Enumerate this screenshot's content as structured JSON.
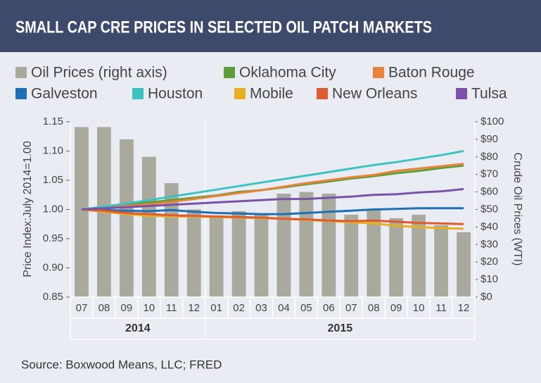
{
  "chart_data": {
    "type": "bar-line",
    "title": "SMALL CAP CRE PRICES IN SELECTED OIL PATCH MARKETS",
    "source": "Source: Boxwood Means, LLC; FRED",
    "ylabel": "Price Index:July 2014=1.00",
    "y2label": "Crude Oil Prices (WTI)",
    "categories": [
      "07",
      "08",
      "09",
      "10",
      "11",
      "12",
      "01",
      "02",
      "03",
      "04",
      "05",
      "06",
      "07",
      "08",
      "09",
      "10",
      "11",
      "12"
    ],
    "years": [
      "2014",
      "2015"
    ],
    "ylim": [
      0.85,
      1.15
    ],
    "yticks": [
      {
        "value": 0.85,
        "label": "0.85"
      },
      {
        "value": 0.9,
        "label": "0.90"
      },
      {
        "value": 0.95,
        "label": "0.95"
      },
      {
        "value": 1.0,
        "label": "1.00"
      },
      {
        "value": 1.05,
        "label": "1.05"
      },
      {
        "value": 1.1,
        "label": "1.10"
      },
      {
        "value": 1.15,
        "label": "1.15"
      }
    ],
    "y2lim": [
      0,
      100
    ],
    "y2ticks": [
      {
        "value": 0,
        "label": "$0"
      },
      {
        "value": 10,
        "label": "$10"
      },
      {
        "value": 20,
        "label": "$20"
      },
      {
        "value": 30,
        "label": "$30"
      },
      {
        "value": 40,
        "label": "$40"
      },
      {
        "value": 50,
        "label": "$50"
      },
      {
        "value": 60,
        "label": "$60"
      },
      {
        "value": 70,
        "label": "$70"
      },
      {
        "value": 80,
        "label": "$80"
      },
      {
        "value": 90,
        "label": "$90"
      },
      {
        "value": 100,
        "label": "$100"
      }
    ],
    "series": [
      {
        "name": "Oil Prices (right axis)",
        "type": "bar",
        "axis": "y2",
        "color": "#a9a99d",
        "values": [
          97,
          97,
          90,
          80,
          65,
          50,
          46,
          49,
          47,
          59,
          60,
          59,
          47,
          50,
          45,
          47,
          41,
          37
        ]
      },
      {
        "name": "Oklahoma City",
        "type": "line",
        "color": "#5e9e3a",
        "values": [
          1.0,
          1.004,
          1.008,
          1.012,
          1.016,
          1.02,
          1.024,
          1.03,
          1.033,
          1.038,
          1.043,
          1.048,
          1.053,
          1.057,
          1.062,
          1.066,
          1.071,
          1.075
        ]
      },
      {
        "name": "Baton Rouge",
        "type": "line",
        "color": "#e8833a",
        "values": [
          1.0,
          1.003,
          1.006,
          1.009,
          1.013,
          1.018,
          1.023,
          1.028,
          1.033,
          1.039,
          1.045,
          1.05,
          1.055,
          1.059,
          1.066,
          1.07,
          1.074,
          1.078
        ]
      },
      {
        "name": "Galveston",
        "type": "line",
        "color": "#1f6fb5",
        "values": [
          1.0,
          0.999,
          0.998,
          0.997,
          0.999,
          0.996,
          0.994,
          0.993,
          0.992,
          0.992,
          0.994,
          0.996,
          0.998,
          1.0,
          1.001,
          1.002,
          1.002,
          1.002
        ]
      },
      {
        "name": "Houston",
        "type": "line",
        "color": "#3ec1c1",
        "values": [
          1.0,
          1.005,
          1.01,
          1.016,
          1.022,
          1.028,
          1.034,
          1.04,
          1.046,
          1.052,
          1.058,
          1.064,
          1.07,
          1.076,
          1.081,
          1.087,
          1.093,
          1.1
        ]
      },
      {
        "name": "Mobile",
        "type": "line",
        "color": "#e8b020",
        "values": [
          1.0,
          0.996,
          0.992,
          0.989,
          0.988,
          0.988,
          0.987,
          0.986,
          0.985,
          0.984,
          0.982,
          0.98,
          0.978,
          0.976,
          0.972,
          0.97,
          0.968,
          0.967
        ]
      },
      {
        "name": "New Orleans",
        "type": "line",
        "color": "#e05a30",
        "values": [
          1.0,
          0.998,
          0.994,
          0.992,
          0.99,
          0.989,
          0.988,
          0.987,
          0.986,
          0.984,
          0.983,
          0.981,
          0.98,
          0.981,
          0.979,
          0.977,
          0.976,
          0.975
        ]
      },
      {
        "name": "Tulsa",
        "type": "line",
        "color": "#7a52a8",
        "values": [
          1.0,
          1.002,
          1.004,
          1.006,
          1.008,
          1.01,
          1.012,
          1.014,
          1.016,
          1.018,
          1.018,
          1.02,
          1.022,
          1.025,
          1.026,
          1.029,
          1.031,
          1.035
        ]
      }
    ]
  }
}
